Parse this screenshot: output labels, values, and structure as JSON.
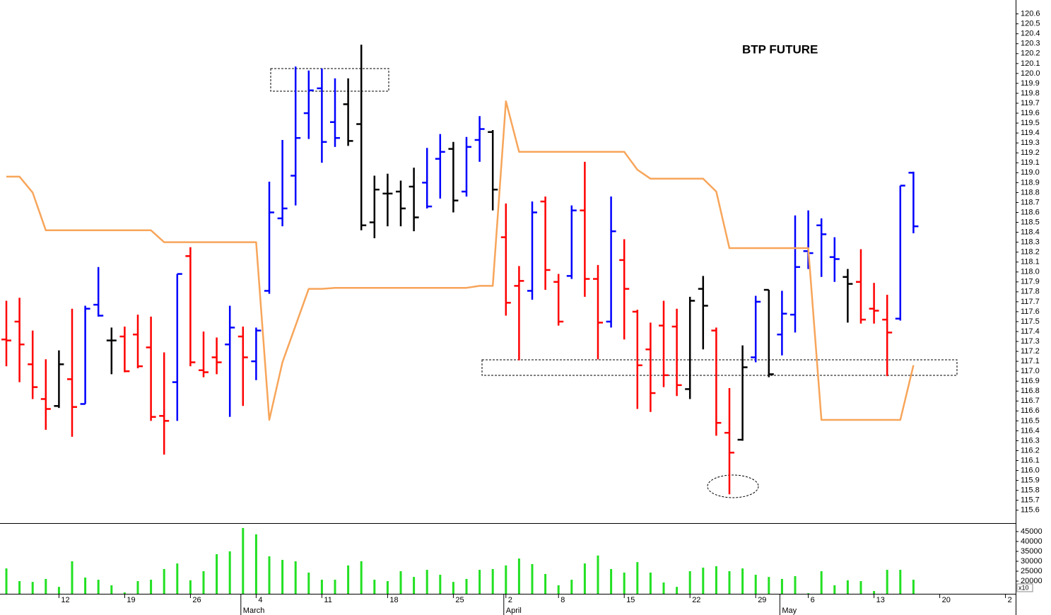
{
  "chart_data": {
    "type": "ohlc",
    "title": "BTP FUTURE",
    "categories": [
      null,
      null,
      null,
      null,
      "12",
      null,
      null,
      null,
      null,
      "19",
      null,
      null,
      null,
      null,
      "26",
      null,
      null,
      null,
      null,
      "4",
      null,
      null,
      null,
      null,
      "11",
      null,
      null,
      null,
      null,
      "18",
      null,
      null,
      null,
      null,
      "25",
      null,
      null,
      null,
      "2",
      null,
      null,
      null,
      "8",
      null,
      null,
      null,
      null,
      "15",
      null,
      null,
      null,
      null,
      "22",
      null,
      null,
      null,
      null,
      "29",
      null,
      null,
      null,
      "6",
      null,
      null,
      null,
      null,
      "13",
      null,
      null,
      null,
      null,
      "20",
      null,
      null,
      null,
      null,
      "2"
    ],
    "months": [
      null,
      null,
      null,
      null,
      null,
      null,
      null,
      null,
      null,
      null,
      null,
      null,
      null,
      null,
      null,
      null,
      null,
      null,
      "March",
      null,
      null,
      null,
      null,
      null,
      null,
      null,
      null,
      null,
      null,
      null,
      null,
      null,
      null,
      null,
      null,
      null,
      null,
      null,
      "April",
      null,
      null,
      null,
      null,
      null,
      null,
      null,
      null,
      null,
      null,
      null,
      null,
      null,
      null,
      null,
      null,
      null,
      null,
      null,
      null,
      "May",
      null,
      null,
      null,
      null,
      null,
      null,
      null,
      null,
      null,
      null,
      null,
      null,
      null,
      null,
      null,
      null,
      null
    ],
    "open": [
      117.32,
      117.5,
      117.07,
      116.72,
      116.65,
      116.92,
      116.67,
      117.67,
      117.31,
      117.35,
      117.37,
      117.24,
      116.55,
      116.89,
      118.16,
      117.01,
      117.14,
      117.27,
      117.35,
      117.1,
      117.81,
      118.54,
      118.97,
      119.6,
      119.85,
      119.51,
      119.69,
      119.49,
      118.5,
      118.79,
      118.81,
      118.86,
      118.9,
      119.14,
      119.24,
      118.81,
      119.33,
      119.41,
      118.35,
      117.86,
      117.81,
      118.71,
      117.9,
      117.96,
      118.62,
      117.93,
      117.5,
      118.12,
      117.6,
      117.22,
      117.46,
      117.45,
      116.82,
      117.83,
      117.41,
      116.38,
      116.31,
      117.14,
      117.82,
      117.37,
      117.57,
      118.21,
      118.47,
      118.15,
      117.95,
      117.9,
      117.63,
      117.52,
      117.53,
      119.0,
      null,
      null,
      null,
      null,
      null,
      null,
      null
    ],
    "high": [
      117.71,
      117.74,
      117.41,
      117.12,
      117.21,
      117.63,
      117.66,
      118.05,
      117.44,
      117.45,
      117.57,
      117.55,
      117.19,
      117.98,
      118.25,
      117.4,
      117.34,
      117.66,
      117.45,
      117.44,
      118.91,
      119.33,
      120.07,
      120.03,
      120.05,
      119.95,
      119.95,
      120.29,
      118.97,
      118.99,
      118.92,
      119.05,
      119.25,
      119.39,
      119.31,
      119.36,
      119.57,
      119.43,
      118.69,
      118.06,
      118.71,
      118.76,
      117.98,
      118.67,
      119.11,
      118.07,
      118.76,
      118.33,
      117.62,
      117.49,
      117.71,
      117.63,
      117.75,
      117.96,
      117.44,
      116.83,
      117.26,
      117.76,
      117.82,
      117.81,
      118.57,
      118.62,
      118.54,
      118.35,
      118.03,
      118.23,
      117.89,
      117.77,
      118.87,
      119.01,
      null,
      null,
      null,
      null,
      null,
      null,
      null
    ],
    "low": [
      117.05,
      116.89,
      116.72,
      116.41,
      116.63,
      116.34,
      116.67,
      117.55,
      116.97,
      116.99,
      117.03,
      116.5,
      116.16,
      116.5,
      117.05,
      116.94,
      116.97,
      116.54,
      116.65,
      116.91,
      117.78,
      118.46,
      118.67,
      119.34,
      119.1,
      119.26,
      119.27,
      118.42,
      118.34,
      118.46,
      118.46,
      118.41,
      118.64,
      118.74,
      118.6,
      118.76,
      119.11,
      118.62,
      117.56,
      117.11,
      117.72,
      117.82,
      117.46,
      117.93,
      117.75,
      117.12,
      117.44,
      117.32,
      116.62,
      116.59,
      116.84,
      116.75,
      116.72,
      117.22,
      116.35,
      115.76,
      116.3,
      117.09,
      116.94,
      117.16,
      117.39,
      118.03,
      117.95,
      117.9,
      117.49,
      117.48,
      117.48,
      116.95,
      117.51,
      118.39,
      null,
      null,
      null,
      null,
      null,
      null,
      null
    ],
    "close": [
      117.31,
      117.27,
      116.84,
      116.62,
      117.07,
      116.64,
      117.63,
      117.56,
      117.31,
      117.0,
      117.05,
      116.54,
      116.5,
      117.98,
      117.09,
      116.99,
      117.09,
      117.44,
      117.14,
      117.41,
      118.6,
      118.64,
      119.35,
      119.83,
      119.31,
      119.35,
      119.32,
      118.47,
      118.83,
      118.79,
      118.64,
      118.55,
      118.66,
      119.21,
      118.72,
      119.26,
      119.44,
      118.83,
      117.69,
      117.91,
      118.6,
      118.02,
      117.5,
      118.62,
      117.93,
      117.49,
      118.41,
      117.83,
      117.06,
      116.78,
      116.96,
      116.86,
      117.71,
      117.66,
      116.48,
      116.18,
      117.04,
      117.7,
      116.97,
      117.58,
      118.05,
      118.19,
      118.38,
      118.13,
      117.88,
      117.52,
      117.61,
      117.39,
      118.87,
      118.46,
      null,
      null,
      null,
      null,
      null,
      null,
      null
    ],
    "bar_colors": [
      "red",
      "red",
      "red",
      "red",
      "black",
      "red",
      "blue",
      "blue",
      "black",
      "red",
      "red",
      "red",
      "red",
      "blue",
      "red",
      "red",
      "red",
      "blue",
      "red",
      "blue",
      "blue",
      "blue",
      "blue",
      "blue",
      "blue",
      "blue",
      "black",
      "black",
      "black",
      "black",
      "black",
      "black",
      "blue",
      "blue",
      "black",
      "blue",
      "blue",
      "black",
      "red",
      "red",
      "blue",
      "red",
      "red",
      "blue",
      "red",
      "red",
      "blue",
      "red",
      "red",
      "red",
      "red",
      "red",
      "black",
      "black",
      "red",
      "red",
      "black",
      "blue",
      "black",
      "blue",
      "blue",
      "blue",
      "blue",
      "blue",
      "black",
      "red",
      "red",
      "red",
      "blue",
      "blue",
      null,
      null,
      null,
      null,
      null,
      null,
      null
    ],
    "overlay": {
      "color": "#f7a55a",
      "values": [
        118.96,
        118.96,
        118.8,
        118.42,
        118.42,
        118.42,
        118.42,
        118.42,
        118.42,
        118.42,
        118.42,
        118.42,
        118.3,
        118.3,
        118.3,
        118.3,
        118.3,
        118.3,
        118.3,
        118.3,
        116.51,
        117.09,
        117.46,
        117.83,
        117.83,
        117.84,
        117.84,
        117.84,
        117.84,
        117.84,
        117.84,
        117.84,
        117.84,
        117.84,
        117.84,
        117.84,
        117.86,
        117.86,
        119.72,
        119.21,
        119.21,
        119.21,
        119.21,
        119.21,
        119.21,
        119.21,
        119.21,
        119.21,
        119.03,
        118.94,
        118.94,
        118.94,
        118.94,
        118.94,
        118.81,
        118.24,
        118.24,
        118.24,
        118.24,
        118.24,
        118.24,
        118.24,
        116.51,
        116.51,
        116.51,
        116.51,
        116.51,
        116.51,
        116.51,
        117.06,
        null,
        null,
        null,
        null,
        null,
        null,
        null
      ]
    },
    "ylim": [
      115.47,
      120.74
    ],
    "yticks": [
      115.6,
      115.7,
      115.8,
      115.9,
      {
        "value": 116,
        "label": "116.0"
      },
      116.1,
      116.2,
      116.3,
      116.4,
      116.5,
      116.6,
      116.7,
      116.8,
      116.9,
      {
        "value": 117,
        "label": "117.0"
      },
      117.1,
      117.2,
      117.3,
      117.4,
      117.5,
      117.6,
      117.7,
      117.8,
      117.9,
      {
        "value": 118,
        "label": "118.0"
      },
      118.1,
      118.2,
      118.3,
      118.4,
      118.5,
      118.6,
      118.7,
      118.8,
      118.9,
      {
        "value": 119,
        "label": "119.0"
      },
      119.1,
      119.2,
      119.3,
      119.4,
      119.5,
      119.6,
      119.7,
      119.8,
      119.9,
      {
        "value": 120,
        "label": "120.0"
      },
      120.1,
      120.2,
      120.3,
      120.4,
      120.5,
      120.6
    ],
    "volume": {
      "color": "#22e022",
      "scale_label": "x10",
      "values": [
        26400,
        20000,
        19600,
        21100,
        17100,
        30000,
        21800,
        20700,
        17900,
        14300,
        20000,
        20700,
        26100,
        28900,
        20400,
        25000,
        33600,
        35000,
        46800,
        43600,
        32500,
        30700,
        30000,
        24300,
        20700,
        20700,
        27900,
        30000,
        20700,
        20000,
        25000,
        22100,
        25700,
        23200,
        19600,
        21100,
        25700,
        26100,
        27900,
        31400,
        28600,
        23600,
        17900,
        20700,
        28900,
        32900,
        26100,
        24300,
        29600,
        24300,
        19300,
        17100,
        25000,
        26800,
        27500,
        25000,
        26400,
        23200,
        22100,
        21100,
        22500,
        13900,
        25000,
        17900,
        20400,
        20000,
        15000,
        25700,
        25700,
        20700,
        null,
        null,
        null,
        null,
        null,
        null,
        null
      ],
      "ylim": [
        13600,
        48900
      ],
      "yticks": [
        20000,
        25000,
        30000,
        35000,
        40000,
        45000
      ]
    }
  }
}
